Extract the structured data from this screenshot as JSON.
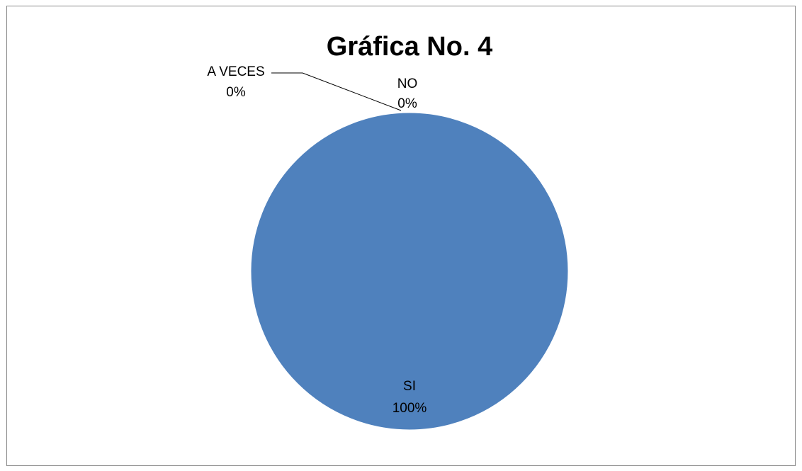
{
  "chart_data": {
    "type": "pie",
    "title": "Gráfica No. 4",
    "categories": [
      "SI",
      "NO",
      "A VECES"
    ],
    "values": [
      100,
      0,
      0
    ],
    "labels": [
      {
        "name": "SI",
        "percent": "100%"
      },
      {
        "name": "NO",
        "percent": "0%"
      },
      {
        "name": "A VECES",
        "percent": "0%"
      }
    ],
    "colors": [
      "#4f81bd",
      "#c0504d",
      "#9bbb59"
    ],
    "legend": "none"
  }
}
